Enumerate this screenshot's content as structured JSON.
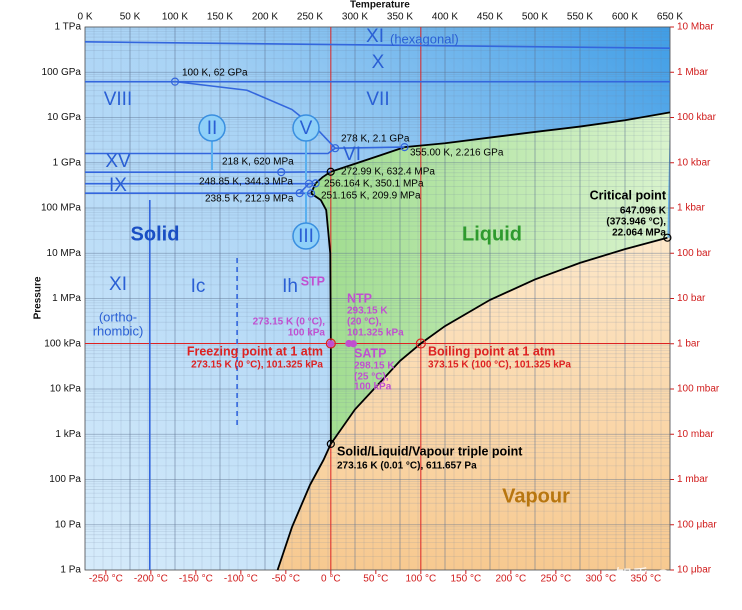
{
  "chart_data": {
    "type": "line",
    "x_label": "Temperature",
    "y_label": "Pressure",
    "xlim": [
      0,
      650
    ],
    "xticks": [
      {
        "value": 0,
        "label": "0 K"
      },
      {
        "value": 50,
        "label": "50 K"
      },
      {
        "value": 100,
        "label": "100 K"
      },
      {
        "value": 150,
        "label": "150 K"
      },
      {
        "value": 200,
        "label": "200 K"
      },
      {
        "value": 250,
        "label": "250 K"
      },
      {
        "value": 300,
        "label": "300 K"
      },
      {
        "value": 350,
        "label": "350 K"
      },
      {
        "value": 400,
        "label": "400 K"
      },
      {
        "value": 450,
        "label": "450 K"
      },
      {
        "value": 500,
        "label": "500 K"
      },
      {
        "value": 550,
        "label": "550 K"
      },
      {
        "value": 600,
        "label": "600 K"
      },
      {
        "value": 650,
        "label": "650 K"
      }
    ],
    "ylim": [
      1,
      1000000000000
    ],
    "yscale": "log",
    "yticks": [
      {
        "value": 1,
        "label": "1 Pa"
      },
      {
        "value": 10,
        "label": "10 Pa"
      },
      {
        "value": 100,
        "label": "100 Pa"
      },
      {
        "value": 1000,
        "label": "1 kPa"
      },
      {
        "value": 10000,
        "label": "10 kPa"
      },
      {
        "value": 100000,
        "label": "100 kPa"
      },
      {
        "value": 1000000,
        "label": "1 MPa"
      },
      {
        "value": 10000000,
        "label": "10 MPa"
      },
      {
        "value": 100000000,
        "label": "100 MPa"
      },
      {
        "value": 1000000000,
        "label": "1 GPa"
      },
      {
        "value": 10000000000,
        "label": "10 GPa"
      },
      {
        "value": 100000000000,
        "label": "100 GPa"
      },
      {
        "value": 1000000000000,
        "label": "1 TPa"
      }
    ],
    "x2lim": [
      -273.15,
      376.85
    ],
    "x2ticks": [
      {
        "value": -250,
        "label": "-250 °C"
      },
      {
        "value": -200,
        "label": "-200 °C"
      },
      {
        "value": -150,
        "label": "-150 °C"
      },
      {
        "value": -100,
        "label": "-100 °C"
      },
      {
        "value": -50,
        "label": "-50 °C"
      },
      {
        "value": 0,
        "label": "0 °C"
      },
      {
        "value": 50,
        "label": "50 °C"
      },
      {
        "value": 100,
        "label": "100 °C"
      },
      {
        "value": 150,
        "label": "150 °C"
      },
      {
        "value": 200,
        "label": "200 °C"
      },
      {
        "value": 250,
        "label": "250 °C"
      },
      {
        "value": 300,
        "label": "300 °C"
      },
      {
        "value": 350,
        "label": "350 °C"
      }
    ],
    "y2lim": [
      1e-05,
      10000000
    ],
    "y2scale": "log",
    "y2ticks": [
      {
        "value": 1e-05,
        "label": "10 μbar"
      },
      {
        "value": 0.0001,
        "label": "100 μbar"
      },
      {
        "value": 0.001,
        "label": "1 mbar"
      },
      {
        "value": 0.01,
        "label": "10 mbar"
      },
      {
        "value": 0.1,
        "label": "100 mbar"
      },
      {
        "value": 1,
        "label": "1 bar"
      },
      {
        "value": 10,
        "label": "10 bar"
      },
      {
        "value": 100,
        "label": "100 bar"
      },
      {
        "value": 1000,
        "label": "1 kbar"
      },
      {
        "value": 10000,
        "label": "10 kbar"
      },
      {
        "value": 100000,
        "label": "100 kbar"
      },
      {
        "value": 1000000,
        "label": "1 Mbar"
      },
      {
        "value": 10000000,
        "label": "10 Mbar"
      }
    ],
    "grid": true,
    "series": [
      {
        "color": "#000000",
        "x": [
          214,
          230,
          250,
          265,
          273.16
        ],
        "values": [
          1,
          8.9,
          76,
          270,
          611.657
        ]
      },
      {
        "color": "#000000",
        "x": [
          273.16,
          300,
          350,
          373.15,
          400,
          450,
          500,
          550,
          600,
          647.096
        ],
        "values": [
          611.657,
          3537,
          41680,
          101325,
          245800,
          932000,
          2637000,
          6117000,
          12340000,
          22064000
        ]
      },
      {
        "color": "#000000",
        "x": [
          273.16,
          273.15,
          272.5,
          268,
          262,
          251.165,
          256.164,
          264,
          272.99,
          300,
          330,
          355,
          400,
          450,
          500,
          550,
          600,
          650
        ],
        "values": [
          611.657,
          101325,
          10000000,
          90000000,
          150000000,
          209900000,
          350100000,
          480000000,
          632400000,
          950000000,
          1500000000,
          2216000000,
          2700000000,
          3600000000,
          4800000000,
          6300000000,
          8700000000,
          13000000000
        ]
      },
      {
        "color": "#3366dd",
        "x": [
          0,
          650
        ],
        "values": [
          470000000000,
          340000000000
        ]
      },
      {
        "color": "#3366dd",
        "x": [
          0,
          650
        ],
        "values": [
          62000000000,
          62000000000
        ]
      },
      {
        "color": "#3366dd",
        "x": [
          100,
          180,
          230,
          260,
          278
        ],
        "values": [
          62000000000,
          40000000000,
          15000000000,
          5000000000,
          2100000000
        ]
      },
      {
        "color": "#3366dd",
        "x": [
          278,
          355
        ],
        "values": [
          2100000000,
          2216000000
        ]
      },
      {
        "color": "#3366dd",
        "x": [
          0,
          270,
          278
        ],
        "values": [
          1600000000,
          1600000000,
          2100000000
        ]
      },
      {
        "color": "#3366dd",
        "x": [
          0,
          218,
          272.99
        ],
        "values": [
          620000000,
          620000000,
          632400000
        ]
      },
      {
        "color": "#3366dd",
        "x": [
          0,
          248.85,
          256.164
        ],
        "values": [
          344300000,
          344300000,
          350100000
        ]
      },
      {
        "color": "#3366dd",
        "x": [
          0,
          238.5,
          251.165
        ],
        "values": [
          212900000,
          212900000,
          209900000
        ]
      },
      {
        "color": "#3366dd",
        "x": [
          238.5,
          248.85
        ],
        "values": [
          212900000,
          344300000
        ]
      },
      {
        "color": "#3366dd",
        "x": [
          72,
          72
        ],
        "values": [
          1,
          150000000
        ]
      },
      {
        "color": "#3366dd",
        "dash": true,
        "x": [
          169,
          169
        ],
        "values": [
          1600,
          8000000
        ]
      }
    ],
    "reference_lines": {
      "color": "#dd2222",
      "x": [
        273.15,
        373.15
      ],
      "y": [
        101325
      ]
    },
    "points": [
      {
        "x": 100,
        "y": 62000000000,
        "color": "#3366dd",
        "lines": [
          "100 K, 62 GPa"
        ]
      },
      {
        "x": 278,
        "y": 2100000000,
        "color": "#3366dd",
        "lines": [
          "278 K, 2.1 GPa"
        ]
      },
      {
        "x": 355,
        "y": 2216000000,
        "color": "#3366dd",
        "lines": [
          "355.00 K, 2.216 GPa"
        ]
      },
      {
        "x": 218,
        "y": 620000000,
        "color": "#3366dd",
        "lines": [
          "218 K, 620 MPa"
        ]
      },
      {
        "x": 272.99,
        "y": 632400000,
        "color": "#000000",
        "lines": [
          "272.99 K, 632.4 MPa"
        ]
      },
      {
        "x": 248.85,
        "y": 344300000,
        "color": "#3366dd",
        "lines": [
          "248.85 K, 344.3 MPa"
        ]
      },
      {
        "x": 256.164,
        "y": 350100000,
        "color": "#3366dd",
        "lines": [
          "256.164 K, 350.1 MPa"
        ]
      },
      {
        "x": 238.5,
        "y": 212900000,
        "color": "#3366dd",
        "lines": [
          "238.5 K, 212.9 MPa"
        ]
      },
      {
        "x": 251.165,
        "y": 209900000,
        "color": "#3366dd",
        "lines": [
          "251.165 K, 209.9 MPa"
        ]
      },
      {
        "x": 647.096,
        "y": 22064000,
        "color": "#000000",
        "lines": [
          "Critical point",
          "647.096 K",
          "(373.946 °C),",
          "22.064 MPa"
        ]
      },
      {
        "x": 273.16,
        "y": 611.657,
        "color": "#000000",
        "lines": [
          "Solid/Liquid/Vapour triple point",
          "273.16 K (0.01 °C), 611.657 Pa"
        ]
      },
      {
        "x": 273.15,
        "y": 101325,
        "color": "#dd2222",
        "lines": [
          "Freezing point at 1 atm",
          "273.15 K (0 °C), 101.325 kPa"
        ]
      },
      {
        "x": 373.15,
        "y": 101325,
        "color": "#dd2222",
        "lines": [
          "Boiling point at 1 atm",
          "373.15 K (100 °C), 101.325 kPa"
        ]
      },
      {
        "x": 273.15,
        "y": 100000,
        "color": "#c050d0",
        "lines": [
          "STP",
          "273.15 K (0 °C),",
          "100 kPa"
        ]
      },
      {
        "x": 293.15,
        "y": 101325,
        "color": "#c050d0",
        "lines": [
          "NTP",
          "293.15 K",
          "(20 °C),",
          "101.325 kPa"
        ]
      },
      {
        "x": 298.15,
        "y": 100000,
        "color": "#c050d0",
        "lines": [
          "SATP",
          "298.15 K",
          "(25 °C),",
          "100 kPa"
        ]
      }
    ],
    "region_labels": [
      "XI",
      "(hexagonal)",
      "X",
      "VIII",
      "VII",
      "II",
      "V",
      "VI",
      "XV",
      "IX",
      "III",
      "Solid",
      "Liquid",
      "XI",
      "Ic",
      "Ih",
      "(ortho-",
      "rhombic)",
      "Vapour"
    ],
    "watermark": "知乎 @灵剑"
  }
}
